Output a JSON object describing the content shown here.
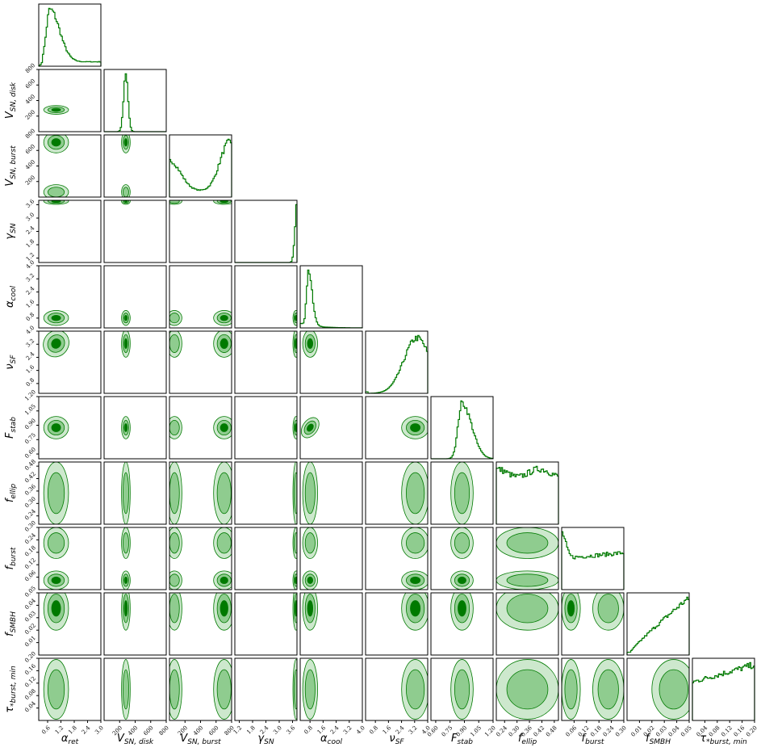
{
  "chart_data": {
    "type": "corner",
    "color": "#007a00",
    "contour_fill_colors": [
      "#cde8cd",
      "#8fcc8f",
      "#007a00"
    ],
    "parameters": [
      {
        "key": "alpha_ret",
        "symbol": "α",
        "sub": "ret",
        "range": [
          0.2,
          3.0
        ],
        "ticks": [
          "0.6",
          "1.2",
          "1.8",
          "2.4",
          "3.0"
        ],
        "tick_values": [
          0.6,
          1.2,
          1.8,
          2.4,
          3.0
        ]
      },
      {
        "key": "V_SN_disk",
        "symbol": "V",
        "sub": "SN, disk",
        "range": [
          0,
          800
        ],
        "ticks": [
          "200",
          "400",
          "600",
          "800"
        ],
        "tick_values": [
          200,
          400,
          600,
          800
        ]
      },
      {
        "key": "V_SN_burst",
        "symbol": "V",
        "sub": "SN, burst",
        "range": [
          0,
          800
        ],
        "ticks": [
          "200",
          "400",
          "600",
          "800"
        ],
        "tick_values": [
          200,
          400,
          600,
          800
        ]
      },
      {
        "key": "gamma_SN",
        "symbol": "γ",
        "sub": "SN",
        "range": [
          1.0,
          3.8
        ],
        "ticks": [
          "1.2",
          "1.8",
          "2.4",
          "3.0",
          "3.6"
        ],
        "tick_values": [
          1.2,
          1.8,
          2.4,
          3.0,
          3.6
        ]
      },
      {
        "key": "alpha_cool",
        "symbol": "α",
        "sub": "cool",
        "range": [
          0.2,
          4.0
        ],
        "ticks": [
          "0.8",
          "1.6",
          "2.4",
          "3.2",
          "4.0"
        ],
        "tick_values": [
          0.8,
          1.6,
          2.4,
          3.2,
          4.0
        ]
      },
      {
        "key": "nu_SF",
        "symbol": "ν",
        "sub": "SF",
        "range": [
          0.2,
          4.0
        ],
        "ticks": [
          "0.8",
          "1.6",
          "2.4",
          "3.2",
          "4.0"
        ],
        "tick_values": [
          0.8,
          1.6,
          2.4,
          3.2,
          4.0
        ]
      },
      {
        "key": "F_stab",
        "symbol": "F",
        "sub": "stab",
        "range": [
          0.55,
          1.2
        ],
        "ticks": [
          "0.60",
          "0.75",
          "0.90",
          "1.05",
          "1.20"
        ],
        "tick_values": [
          0.6,
          0.75,
          0.9,
          1.05,
          1.2
        ]
      },
      {
        "key": "f_ellip",
        "symbol": "f",
        "sub": "ellip",
        "range": [
          0.2,
          0.5
        ],
        "ticks": [
          "0.24",
          "0.30",
          "0.36",
          "0.42",
          "0.48"
        ],
        "tick_values": [
          0.24,
          0.3,
          0.36,
          0.42,
          0.48
        ]
      },
      {
        "key": "f_burst",
        "symbol": "f",
        "sub": "burst",
        "range": [
          0.0,
          0.3
        ],
        "ticks": [
          "0.06",
          "0.12",
          "0.18",
          "0.24",
          "0.30"
        ],
        "tick_values": [
          0.06,
          0.12,
          0.18,
          0.24,
          0.3
        ]
      },
      {
        "key": "f_SMBH",
        "symbol": "f",
        "sub": "SMBH",
        "range": [
          0.0,
          0.05
        ],
        "ticks": [
          "0.01",
          "0.02",
          "0.03",
          "0.04",
          "0.05"
        ],
        "tick_values": [
          0.01,
          0.02,
          0.03,
          0.04,
          0.05
        ]
      },
      {
        "key": "tau_burst_min",
        "symbol": "τ",
        "sub": "*burst, min",
        "range": [
          0.0,
          0.2
        ],
        "ticks": [
          "0.04",
          "0.08",
          "0.12",
          "0.16",
          "0.20"
        ],
        "tick_values": [
          0.04,
          0.08,
          0.12,
          0.16,
          0.2
        ]
      }
    ],
    "marginals_peak": [
      0.85,
      280,
      760,
      3.75,
      0.8,
      3.3,
      0.88,
      0.3,
      0.03,
      0.049,
      0.2
    ],
    "marginals_width": [
      0.5,
      30,
      120,
      0.05,
      0.3,
      0.55,
      0.08,
      0.5,
      0.1,
      0.015,
      0.2
    ],
    "grid": false
  }
}
